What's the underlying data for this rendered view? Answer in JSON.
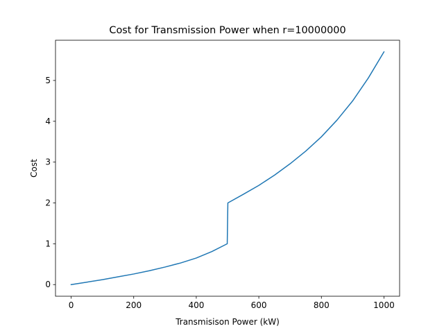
{
  "chart_data": {
    "type": "line",
    "title": "Cost for Transmission Power when r=10000000",
    "xlabel": "Transmisison Power (kW)",
    "ylabel": "Cost",
    "xlim": [
      -50,
      1050
    ],
    "ylim": [
      -0.285,
      5.985
    ],
    "xticks": [
      0,
      200,
      400,
      600,
      800,
      1000
    ],
    "yticks": [
      0,
      1,
      2,
      3,
      4,
      5
    ],
    "grid": false,
    "series": [
      {
        "color": "#1f77b4",
        "x": [
          0,
          50,
          100,
          150,
          200,
          250,
          300,
          350,
          400,
          450,
          499,
          501,
          550,
          600,
          650,
          700,
          750,
          800,
          850,
          900,
          950,
          1000
        ],
        "y": [
          0,
          0.06,
          0.12,
          0.19,
          0.26,
          0.34,
          0.43,
          0.53,
          0.65,
          0.81,
          1.0,
          2.0,
          2.21,
          2.43,
          2.68,
          2.96,
          3.27,
          3.62,
          4.03,
          4.5,
          5.06,
          5.7
        ]
      }
    ]
  }
}
